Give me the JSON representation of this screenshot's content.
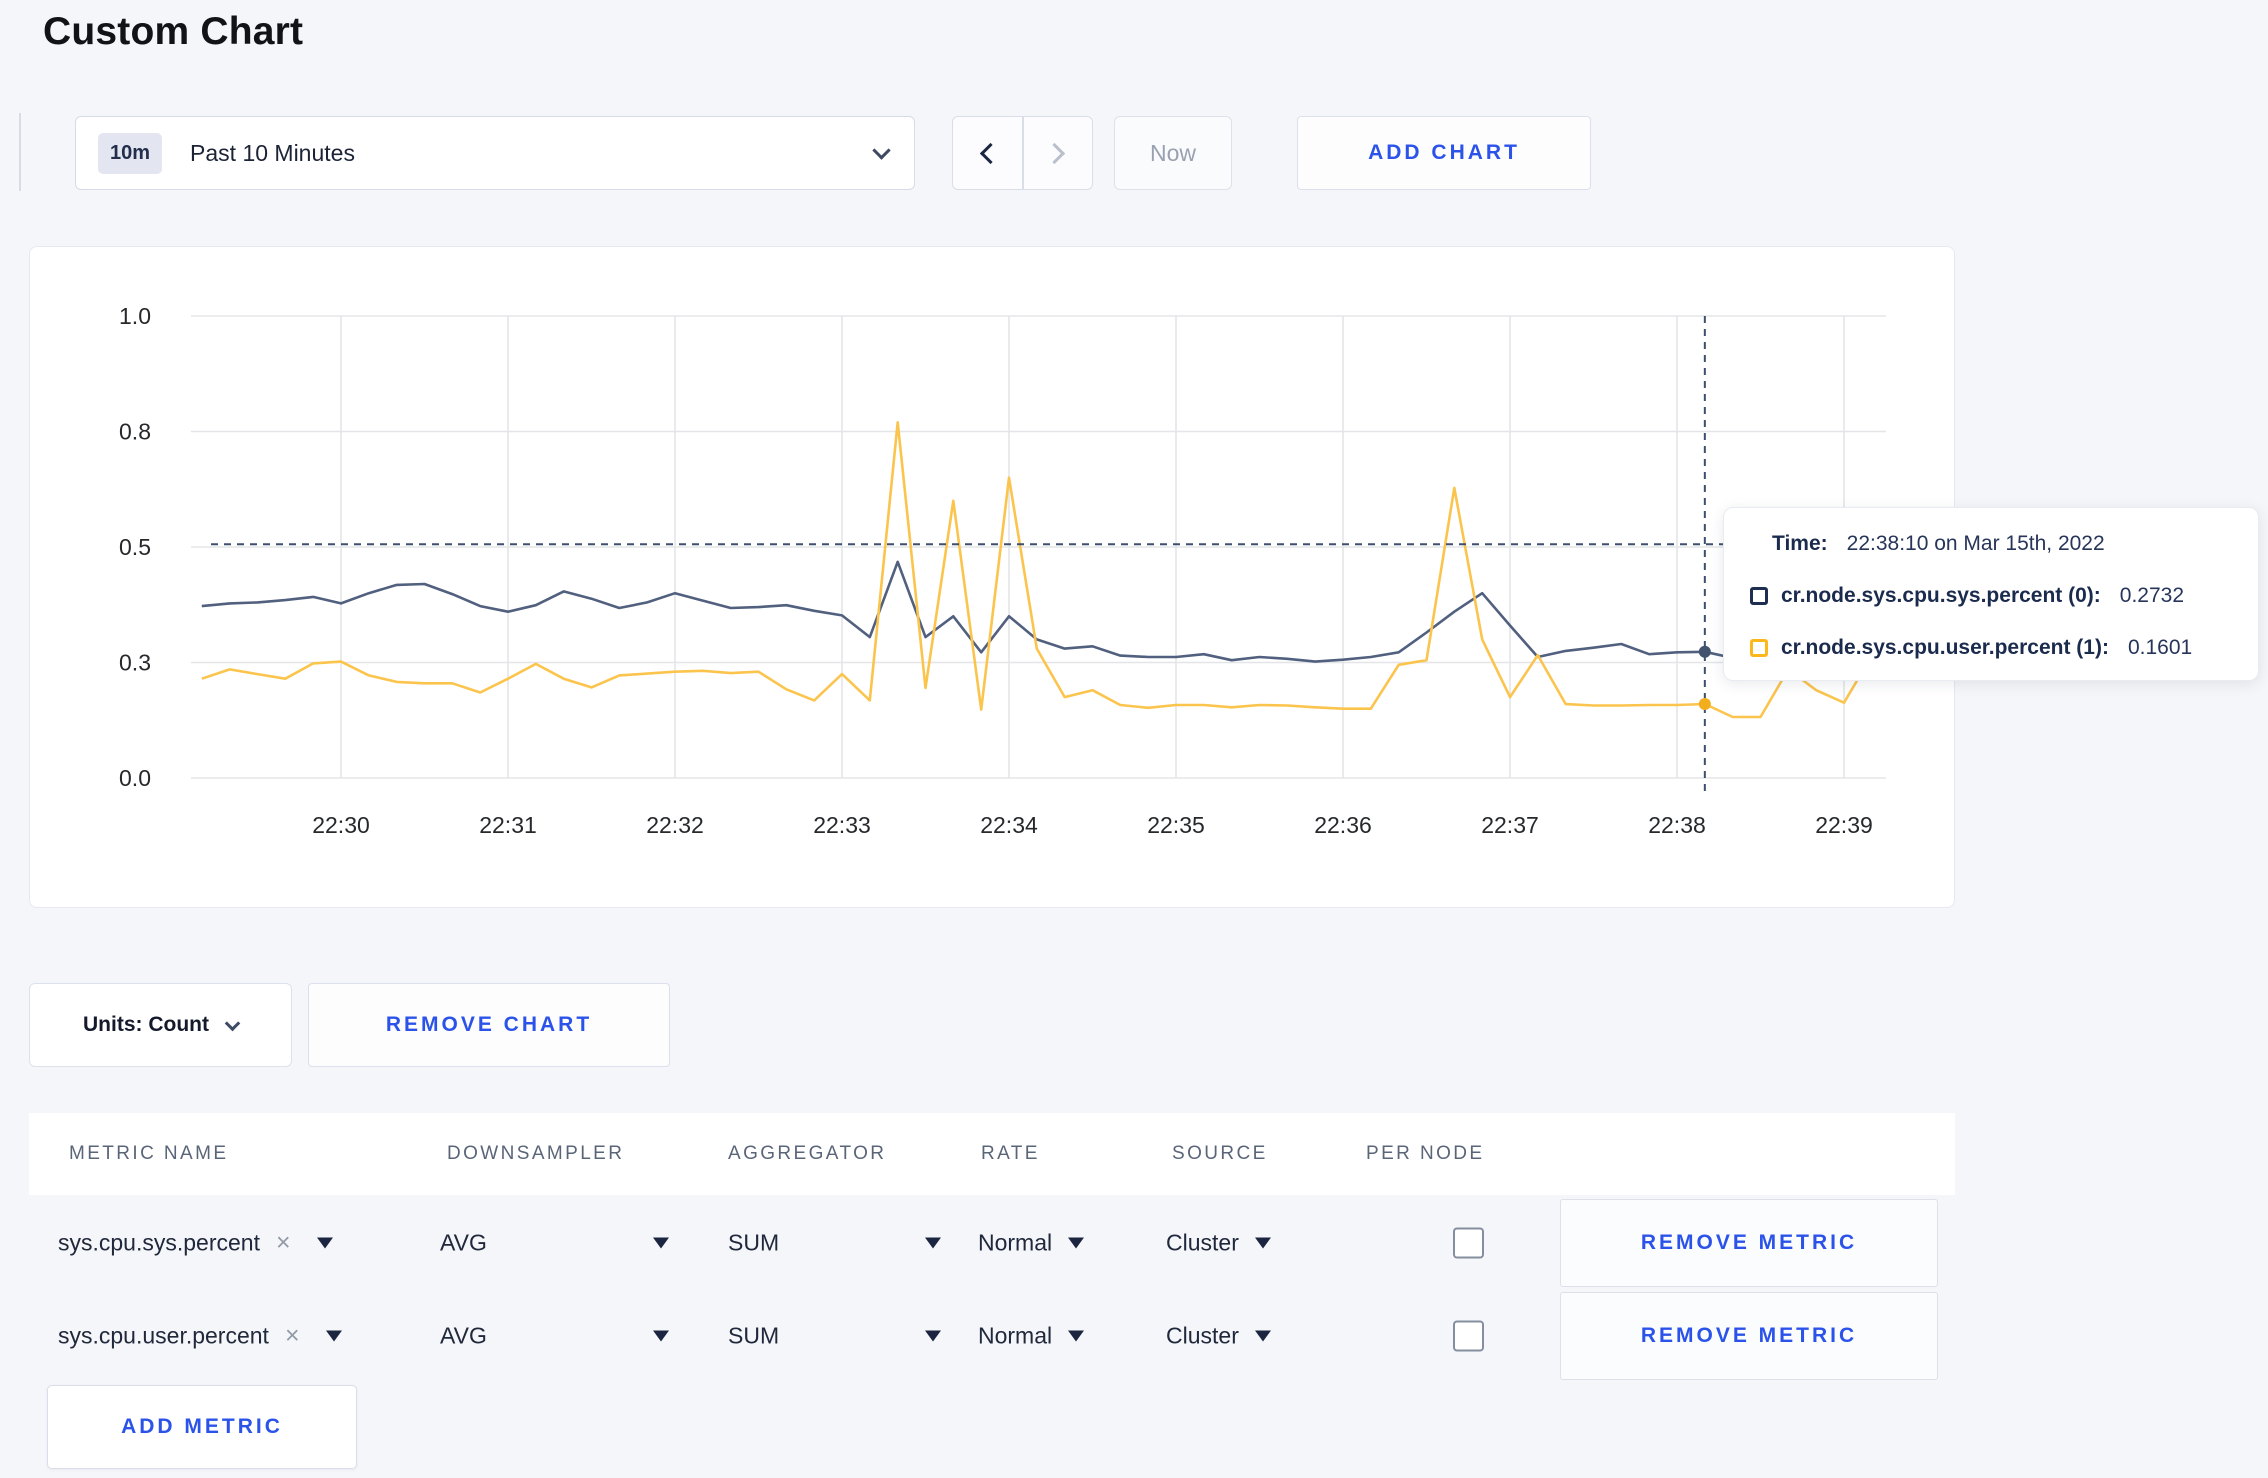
{
  "page": {
    "title": "Custom Chart"
  },
  "colors": {
    "accent_blue": "#2b53e9",
    "line_sys": "#51607e",
    "line_user": "#fbc44d",
    "grid": "#e3e5e8",
    "axis_text": "#26282b",
    "crosshair": "#3d4f6d",
    "marker_sys": "#42536f",
    "marker_user": "#f3ae1d"
  },
  "toolbar": {
    "time_range": {
      "badge": "10m",
      "label": "Past 10 Minutes"
    },
    "now_label": "Now",
    "add_chart_label": "ADD CHART"
  },
  "chart_data": {
    "type": "line",
    "title": "",
    "xlabel": "",
    "ylabel": "",
    "ylim": [
      0,
      1
    ],
    "grid": true,
    "x_tick_labels": [
      "22:30",
      "22:31",
      "22:32",
      "22:33",
      "22:34",
      "22:35",
      "22:36",
      "22:37",
      "22:38",
      "22:39"
    ],
    "y_tick_labels": [
      "0.0",
      "0.3",
      "0.5",
      "0.8",
      "1.0"
    ],
    "y_tick_values": [
      0,
      0.25,
      0.5,
      0.75,
      1.0
    ],
    "start_sec": -50,
    "step_sec": 10,
    "series": [
      {
        "name": "cr.node.sys.cpu.sys.percent",
        "values": [
          0.372,
          0.378,
          0.38,
          0.385,
          0.392,
          0.378,
          0.4,
          0.418,
          0.42,
          0.398,
          0.372,
          0.36,
          0.374,
          0.404,
          0.388,
          0.368,
          0.38,
          0.4,
          0.384,
          0.368,
          0.37,
          0.374,
          0.362,
          0.352,
          0.305,
          0.468,
          0.305,
          0.35,
          0.272,
          0.35,
          0.3,
          0.28,
          0.285,
          0.265,
          0.262,
          0.262,
          0.268,
          0.255,
          0.262,
          0.258,
          0.252,
          0.256,
          0.262,
          0.272,
          0.315,
          0.36,
          0.4,
          0.33,
          0.262,
          0.275,
          0.282,
          0.29,
          0.268,
          0.272,
          0.2732,
          0.26,
          0.268,
          0.278,
          0.268,
          0.275,
          0.278
        ]
      },
      {
        "name": "cr.node.sys.cpu.user.percent",
        "values": [
          0.215,
          0.235,
          0.225,
          0.215,
          0.248,
          0.252,
          0.222,
          0.208,
          0.205,
          0.205,
          0.185,
          0.215,
          0.247,
          0.215,
          0.196,
          0.222,
          0.226,
          0.23,
          0.232,
          0.227,
          0.23,
          0.192,
          0.168,
          0.225,
          0.168,
          0.77,
          0.195,
          0.6,
          0.148,
          0.65,
          0.28,
          0.175,
          0.19,
          0.158,
          0.152,
          0.158,
          0.158,
          0.153,
          0.158,
          0.157,
          0.153,
          0.15,
          0.15,
          0.245,
          0.255,
          0.628,
          0.3,
          0.175,
          0.266,
          0.16,
          0.157,
          0.157,
          0.158,
          0.158,
          0.1601,
          0.132,
          0.132,
          0.235,
          0.19,
          0.163,
          0.265
        ]
      }
    ],
    "crosshair": {
      "x_sec": 490,
      "hline_value": 0.506
    },
    "markers": [
      {
        "series": 0,
        "x_sec": 490,
        "value": 0.2732
      },
      {
        "series": 1,
        "x_sec": 490,
        "value": 0.1601
      }
    ],
    "legend_position": "tooltip"
  },
  "chart": {
    "tooltip": {
      "time_label": "Time:",
      "time_value": "22:38:10 on Mar 15th, 2022",
      "rows": [
        {
          "label": "cr.node.sys.cpu.sys.percent (0):",
          "value": "0.2732"
        },
        {
          "label": "cr.node.sys.cpu.user.percent (1):",
          "value": "0.1601"
        }
      ]
    }
  },
  "units": {
    "label": "Units: Count",
    "remove_chart_label": "REMOVE CHART"
  },
  "metrics": {
    "headers": [
      "METRIC NAME",
      "DOWNSAMPLER",
      "AGGREGATOR",
      "RATE",
      "SOURCE",
      "PER NODE"
    ],
    "rows": [
      {
        "name": "sys.cpu.sys.percent",
        "close": "×",
        "downsampler": "AVG",
        "aggregator": "SUM",
        "rate": "Normal",
        "source": "Cluster",
        "per_node_checked": false,
        "remove_label": "REMOVE METRIC"
      },
      {
        "name": "sys.cpu.user.percent",
        "close": "×",
        "downsampler": "AVG",
        "aggregator": "SUM",
        "rate": "Normal",
        "source": "Cluster",
        "per_node_checked": false,
        "remove_label": "REMOVE METRIC"
      }
    ],
    "add_label": "ADD METRIC"
  }
}
